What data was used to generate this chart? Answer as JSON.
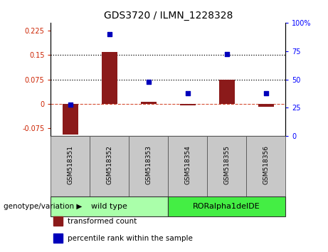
{
  "title": "GDS3720 / ILMN_1228328",
  "samples": [
    "GSM518351",
    "GSM518352",
    "GSM518353",
    "GSM518354",
    "GSM518355",
    "GSM518356"
  ],
  "transformed_count": [
    -0.095,
    0.16,
    0.005,
    -0.005,
    0.075,
    -0.01
  ],
  "percentile_rank": [
    28,
    90,
    48,
    38,
    72,
    38
  ],
  "ylim_left": [
    -0.1,
    0.25
  ],
  "ylim_right": [
    0,
    100
  ],
  "yticks_left": [
    -0.075,
    0,
    0.075,
    0.15,
    0.225
  ],
  "yticks_right": [
    0,
    25,
    50,
    75,
    100
  ],
  "hlines": [
    0.075,
    0.15
  ],
  "hline_zero": 0,
  "bar_color": "#8B1A1A",
  "scatter_color": "#0000BB",
  "genotype_groups": [
    {
      "label": "wild type",
      "start": 0,
      "end": 3,
      "color": "#AAFFAA"
    },
    {
      "label": "RORalpha1delDE",
      "start": 3,
      "end": 6,
      "color": "#44EE44"
    }
  ],
  "legend_items": [
    {
      "label": "transformed count",
      "color": "#8B1A1A"
    },
    {
      "label": "percentile rank within the sample",
      "color": "#0000BB"
    }
  ],
  "xlabel_genotype": "genotype/variation",
  "title_fontsize": 10,
  "bar_width": 0.4
}
